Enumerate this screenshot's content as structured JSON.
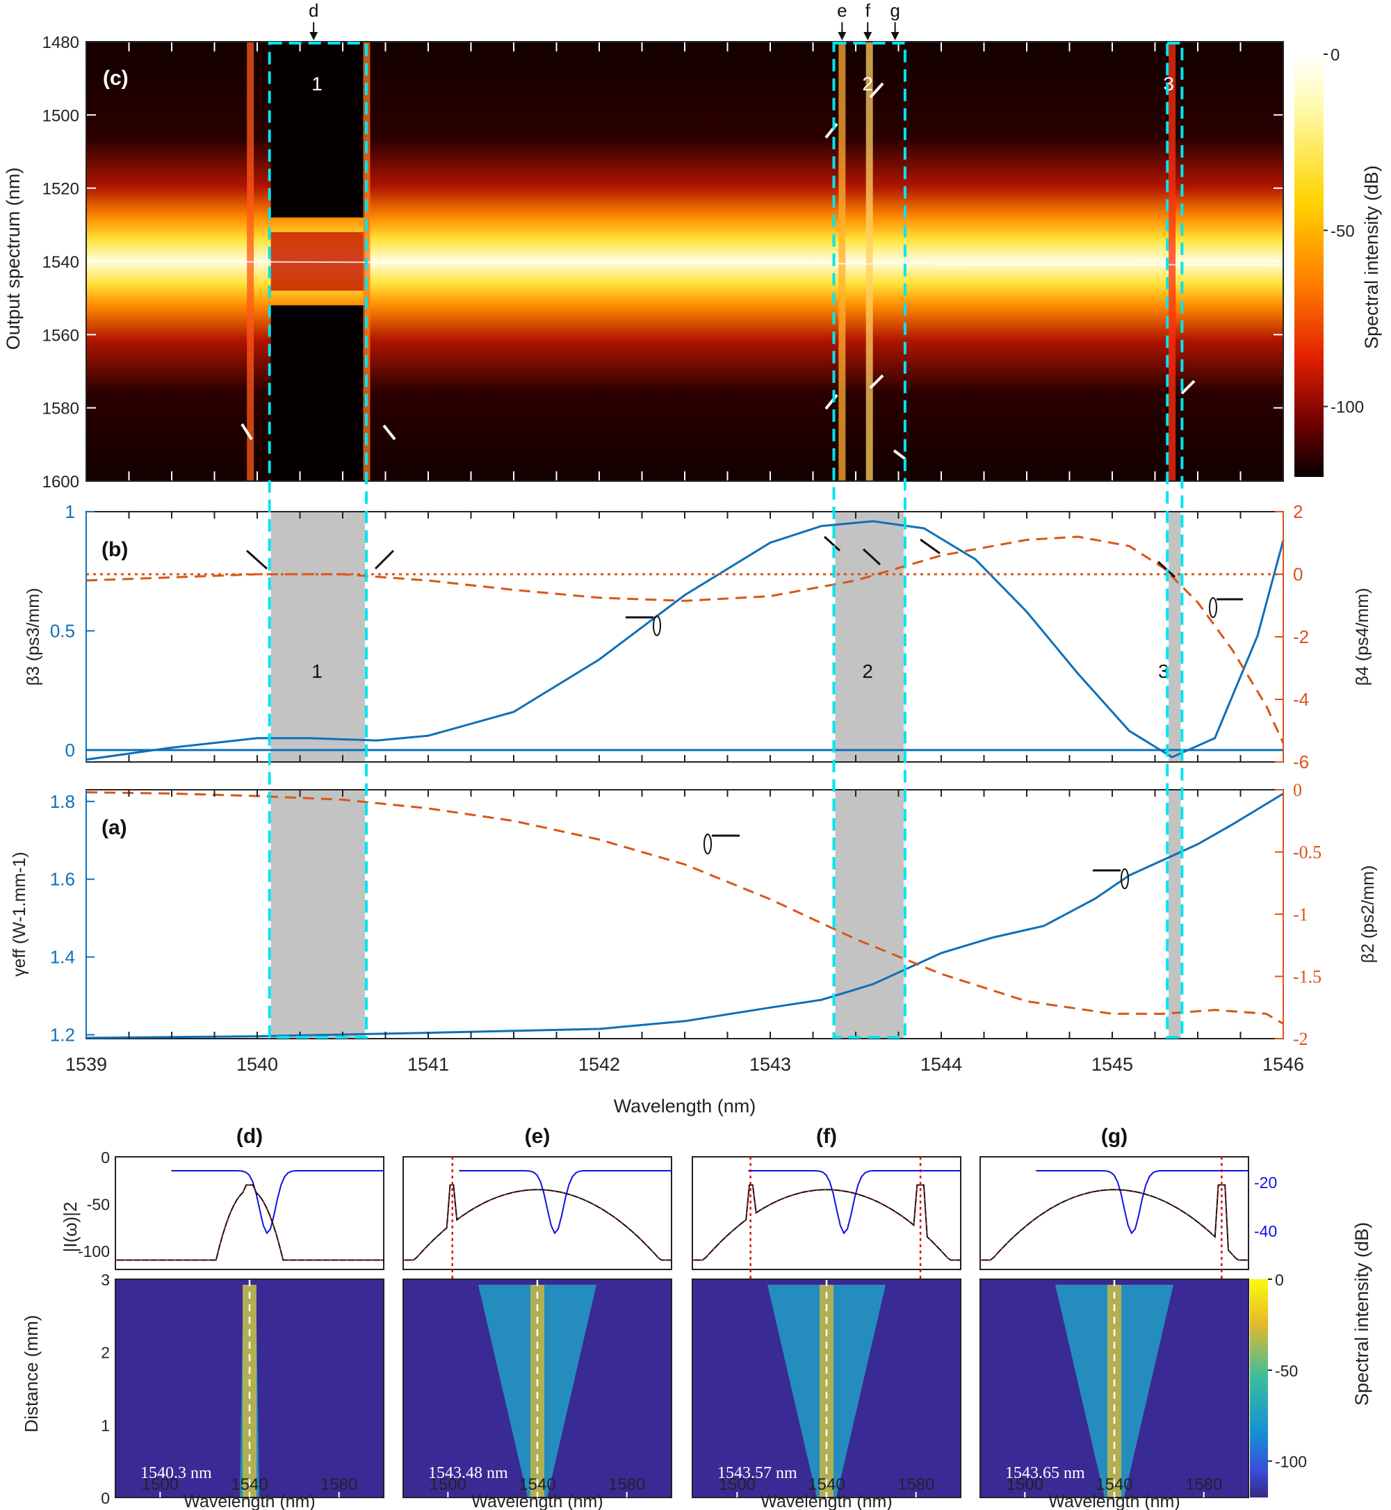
{
  "figure": {
    "x_axis_label": "Wavelength (nm)",
    "x_ticks": [
      "1539",
      "1540",
      "1541",
      "1542",
      "1543",
      "1544",
      "1545",
      "1546"
    ],
    "bottom_xlabel": "Wavelength (nm)",
    "colors": {
      "blue": "#0e6fb8",
      "orange": "#d9541a",
      "cyan": "#00e5f0",
      "gray": "#c3c3c3"
    }
  },
  "chart_data": [
    {
      "type": "heatmap",
      "panel": "(c)",
      "ylabel": "Output spectrum (nm)",
      "yticks": [
        "1480",
        "1500",
        "1520",
        "1540",
        "1560",
        "1580",
        "1600"
      ],
      "ylim": [
        1480,
        1600
      ],
      "xlim": [
        1539,
        1546
      ],
      "colorbar": {
        "label": "Spectral intensity (dB)",
        "ticks": [
          "0",
          "-50",
          "-100"
        ],
        "range": [
          -120,
          0
        ]
      },
      "top_markers": [
        "d",
        "e",
        "f",
        "g"
      ],
      "region_labels": [
        "1",
        "2",
        "3"
      ],
      "regions_nm": [
        [
          1540.08,
          1540.63
        ],
        [
          1543.38,
          1543.78
        ],
        [
          1545.33,
          1545.4
        ]
      ]
    },
    {
      "type": "line",
      "panel": "(b)",
      "ylabel_left": "β3 (ps3/mm)",
      "ylabel_right": "β4 (ps4/mm)",
      "yticks_left": [
        "1",
        "0.5",
        "0"
      ],
      "yticks_right": [
        "2",
        "0",
        "-2",
        "-4",
        "-6"
      ],
      "ylim_left": [
        -0.05,
        1.0
      ],
      "ylim_right": [
        -6,
        2
      ],
      "series": [
        {
          "name": "β3",
          "axis": "left",
          "style": "solid",
          "x": [
            1539,
            1539.5,
            1540,
            1540.3,
            1540.7,
            1541,
            1541.5,
            1542,
            1542.5,
            1543,
            1543.3,
            1543.6,
            1543.9,
            1544.2,
            1544.5,
            1544.8,
            1545.1,
            1545.35,
            1545.6,
            1545.85,
            1546
          ],
          "y": [
            -0.04,
            0.01,
            0.05,
            0.05,
            0.04,
            0.06,
            0.16,
            0.38,
            0.65,
            0.87,
            0.94,
            0.96,
            0.93,
            0.8,
            0.58,
            0.32,
            0.08,
            -0.03,
            0.05,
            0.48,
            0.88
          ]
        },
        {
          "name": "β4",
          "axis": "right",
          "style": "dashed",
          "x": [
            1539,
            1539.5,
            1540,
            1540.5,
            1541,
            1541.5,
            1542,
            1542.5,
            1543,
            1543.5,
            1544,
            1544.5,
            1544.8,
            1545.1,
            1545.3,
            1545.5,
            1545.7,
            1545.9,
            1546
          ],
          "y": [
            -0.2,
            -0.1,
            0.0,
            0.0,
            -0.2,
            -0.5,
            -0.75,
            -0.85,
            -0.7,
            -0.2,
            0.6,
            1.1,
            1.2,
            0.9,
            0.2,
            -0.9,
            -2.4,
            -4.2,
            -5.4
          ]
        },
        {
          "name": "zero β4",
          "axis": "right",
          "style": "dotted",
          "x": [
            1539,
            1546
          ],
          "y": [
            0,
            0
          ]
        },
        {
          "name": "zero β3",
          "axis": "left",
          "style": "solid",
          "x": [
            1539,
            1546
          ],
          "y": [
            0,
            0
          ]
        }
      ],
      "region_labels": [
        "1",
        "2",
        "3"
      ]
    },
    {
      "type": "line",
      "panel": "(a)",
      "ylabel_left": "γeff (W-1.mm-1)",
      "ylabel_right": "β2 (ps2/mm)",
      "yticks_left": [
        "1.8",
        "1.6",
        "1.4",
        "1.2"
      ],
      "yticks_right": [
        "0",
        "-0.5",
        "-1",
        "-1.5",
        "-2"
      ],
      "ylim_left": [
        1.19,
        1.83
      ],
      "ylim_right": [
        -2,
        0
      ],
      "series": [
        {
          "name": "γeff",
          "axis": "left",
          "style": "solid",
          "x": [
            1539,
            1540,
            1541,
            1542,
            1542.5,
            1543,
            1543.3,
            1543.6,
            1543.8,
            1544,
            1544.3,
            1544.6,
            1544.9,
            1545.1,
            1545.3,
            1545.5,
            1545.7,
            1545.85,
            1546
          ],
          "y": [
            1.192,
            1.196,
            1.205,
            1.215,
            1.235,
            1.27,
            1.29,
            1.33,
            1.37,
            1.41,
            1.45,
            1.48,
            1.55,
            1.61,
            1.65,
            1.69,
            1.74,
            1.78,
            1.82
          ]
        },
        {
          "name": "β2",
          "axis": "right",
          "style": "dashed",
          "x": [
            1539,
            1539.5,
            1540,
            1540.5,
            1541,
            1541.5,
            1542,
            1542.5,
            1543,
            1543.5,
            1544,
            1544.5,
            1545,
            1545.3,
            1545.6,
            1545.9,
            1546
          ],
          "y": [
            -0.02,
            -0.03,
            -0.05,
            -0.08,
            -0.15,
            -0.25,
            -0.4,
            -0.6,
            -0.88,
            -1.2,
            -1.48,
            -1.7,
            -1.8,
            -1.8,
            -1.77,
            -1.8,
            -1.88
          ]
        }
      ]
    },
    {
      "type": "line",
      "panel_set": "(d)-(g)",
      "panels": [
        {
          "label": "(d)",
          "pump": "1540.3 nm",
          "peaks": [
            1540
          ]
        },
        {
          "label": "(e)",
          "pump": "1543.48 nm",
          "peaks": [
            1502
          ]
        },
        {
          "label": "(f)",
          "pump": "1543.57 nm",
          "peaks": [
            1506,
            1582
          ]
        },
        {
          "label": "(g)",
          "pump": "1543.65 nm",
          "peaks": [
            1588
          ]
        }
      ],
      "ylabel_top_left": "|I(ω)|2",
      "yticks_top_left": [
        "0",
        "-50",
        "-100"
      ],
      "yticks_top_right": [
        "-20",
        "-40"
      ],
      "ylabel_right": "Spectral intensity (dB)",
      "ylabel_bottom_left": "Distance (mm)",
      "yticks_bottom": [
        "3",
        "2",
        "1",
        "0"
      ],
      "xticks": [
        "1500",
        "1540",
        "1580"
      ],
      "xlim": [
        1480,
        1600
      ],
      "xlabel": "Wavelength (nm)",
      "colorbar": {
        "ticks": [
          "0",
          "-50",
          "-100"
        ],
        "range": [
          -120,
          0
        ]
      }
    }
  ]
}
